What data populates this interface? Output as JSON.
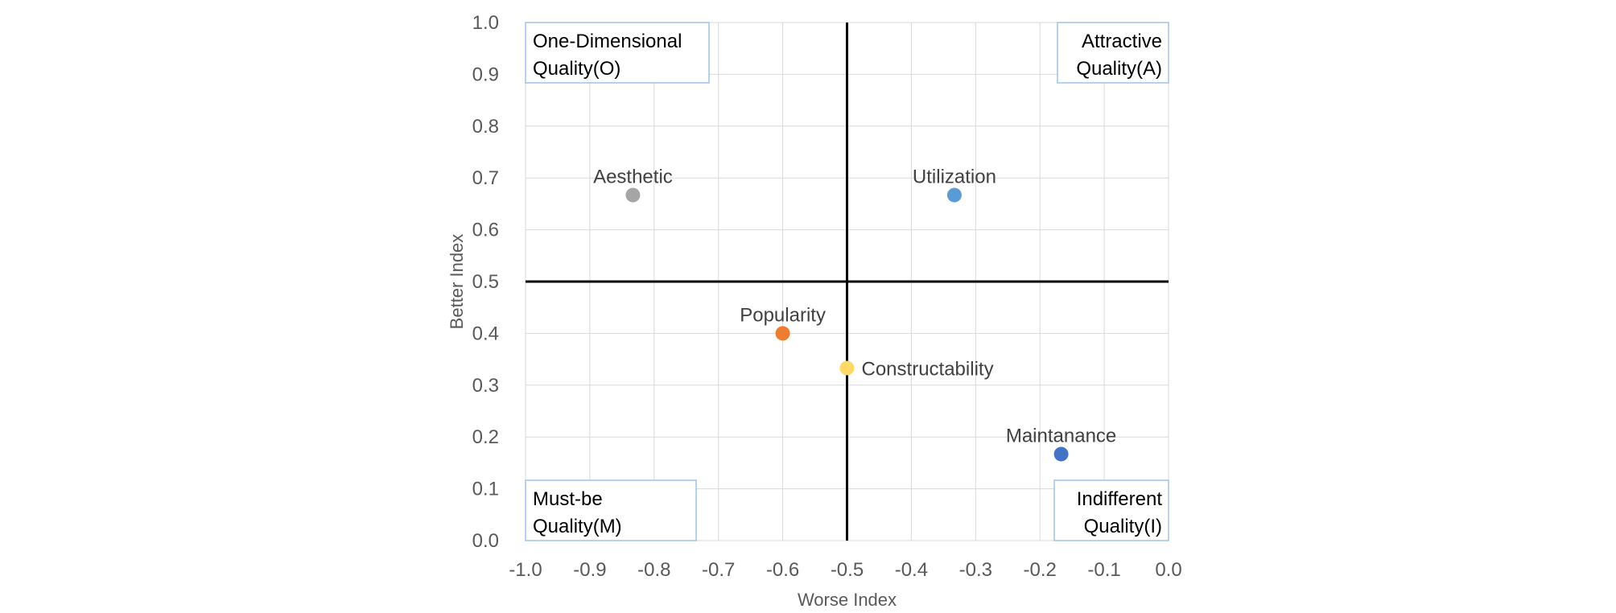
{
  "chart_data": {
    "type": "scatter",
    "title": "",
    "xlabel": "Worse Index",
    "ylabel": "Better Index",
    "xlim": [
      -1.0,
      0.0
    ],
    "ylim": [
      0.0,
      1.0
    ],
    "x_ticks": [
      "-1.0",
      "-0.9",
      "-0.8",
      "-0.7",
      "-0.6",
      "-0.5",
      "-0.4",
      "-0.3",
      "-0.2",
      "-0.1",
      "0.0"
    ],
    "y_ticks": [
      "0.0",
      "0.1",
      "0.2",
      "0.3",
      "0.4",
      "0.5",
      "0.6",
      "0.7",
      "0.8",
      "0.9",
      "1.0"
    ],
    "grid": true,
    "quadrant_divider": {
      "x": -0.5,
      "y": 0.5
    },
    "points": [
      {
        "name": "Utilization",
        "x": -0.333,
        "y": 0.667,
        "color": "#5b9bd5",
        "label_position": "above"
      },
      {
        "name": "Aesthetic",
        "x": -0.833,
        "y": 0.667,
        "color": "#a5a5a5",
        "label_position": "above"
      },
      {
        "name": "Popularity",
        "x": -0.6,
        "y": 0.4,
        "color": "#ed7d31",
        "label_position": "above"
      },
      {
        "name": "Constructability",
        "x": -0.5,
        "y": 0.333,
        "color": "#ffd966",
        "label_position": "right"
      },
      {
        "name": "Maintanance",
        "x": -0.167,
        "y": 0.167,
        "color": "#4472c4",
        "label_position": "above"
      }
    ],
    "annotations": [
      {
        "id": "quad-one-dimensional",
        "lines": [
          "One-Dimensional",
          "Quality(O)"
        ],
        "corner": "top-left"
      },
      {
        "id": "quad-attractive",
        "lines": [
          "Attractive",
          "Quality(A)"
        ],
        "corner": "top-right"
      },
      {
        "id": "quad-must-be",
        "lines": [
          "Must-be",
          "Quality(M)"
        ],
        "corner": "bottom-left"
      },
      {
        "id": "quad-indifferent",
        "lines": [
          "Indifferent",
          "Quality(I)"
        ],
        "corner": "bottom-right"
      }
    ]
  }
}
